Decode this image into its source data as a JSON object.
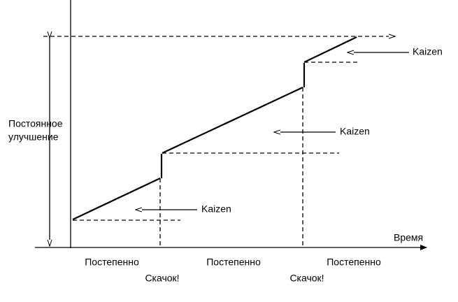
{
  "y_axis_label": [
    "Постоянное",
    "улучшение"
  ],
  "x_axis_label": "Время",
  "phases": [
    "Постепенно",
    "Постепенно",
    "Постепенно"
  ],
  "jumps": [
    "Скачок!",
    "Скачок!"
  ],
  "kaizen_labels": [
    "Kaizen",
    "Kaizen",
    "Kaizen"
  ]
}
